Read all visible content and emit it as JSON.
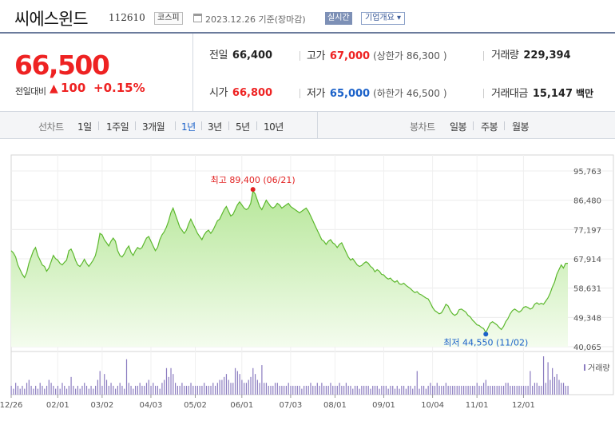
{
  "header": {
    "stock_name": "씨에스윈드",
    "stock_code": "112610",
    "market": "코스피",
    "date_text": "2023.12.26 기준(장마감)",
    "realtime_label": "실시간",
    "overview_label": "기업개요 ▾"
  },
  "quote": {
    "current_price": "66,500",
    "change_label": "전일대비",
    "change_arrow": "▲",
    "change_value": "100",
    "change_pct": "+0.15%",
    "prev_close": {
      "label": "전일",
      "value": "66,400"
    },
    "open": {
      "label": "시가",
      "value": "66,800"
    },
    "high": {
      "label": "고가",
      "value": "67,000",
      "limit_label": "(상한가",
      "limit_value": "86,300",
      "limit_close": ")"
    },
    "low": {
      "label": "저가",
      "value": "65,000",
      "limit_label": "(하한가",
      "limit_value": "46,500",
      "limit_close": ")"
    },
    "volume": {
      "label": "거래량",
      "value": "229,394"
    },
    "amount": {
      "label": "거래대금",
      "value": "15,147",
      "unit": "백만"
    }
  },
  "period_bar": {
    "line_label": "선차트",
    "periods": [
      "1일",
      "1주일",
      "3개월",
      "1년",
      "3년",
      "5년",
      "10년"
    ],
    "active_period": "1년",
    "candle_label": "봉차트",
    "candles": [
      "일봉",
      "주봉",
      "월봉"
    ]
  },
  "chart_data": {
    "type": "area",
    "y_ticks": [
      "95,763",
      "86,480",
      "77,197",
      "67,914",
      "58,631",
      "49,348",
      "40,065"
    ],
    "ylim": [
      40065,
      95763
    ],
    "x_ticks": [
      "12/26",
      "02/01",
      "03/02",
      "04/03",
      "05/02",
      "06/01",
      "07/03",
      "08/01",
      "09/01",
      "10/04",
      "11/01",
      "12/01"
    ],
    "max_annotation": "최고 89,400 (06/21)",
    "min_annotation": "최저 44,550 (11/02)",
    "volume_label": "거래량",
    "line_color": "#5cb82d",
    "fill_color": "#c8eeb0",
    "up_color": "#e22222",
    "down_color": "#1a61c9",
    "prices": [
      70500,
      69800,
      68500,
      66000,
      64500,
      63000,
      62000,
      63500,
      66500,
      68500,
      70500,
      71500,
      69000,
      67500,
      66000,
      65500,
      64000,
      65000,
      67000,
      69000,
      68000,
      67500,
      66500,
      66000,
      66800,
      67500,
      70500,
      71000,
      69500,
      67500,
      66000,
      65500,
      66500,
      67800,
      66500,
      65500,
      66500,
      67500,
      69000,
      72000,
      76000,
      75500,
      74000,
      73000,
      72000,
      73500,
      74500,
      73500,
      70500,
      69000,
      68500,
      69500,
      71000,
      72000,
      70000,
      69000,
      70500,
      71500,
      71000,
      71500,
      73000,
      74500,
      75000,
      73500,
      72000,
      70500,
      71500,
      74000,
      75500,
      76500,
      78000,
      80000,
      82500,
      84000,
      82000,
      80000,
      78000,
      77000,
      76000,
      77000,
      79000,
      80500,
      79000,
      77500,
      76000,
      75000,
      74000,
      75500,
      76500,
      77000,
      76000,
      77000,
      78500,
      80000,
      80500,
      82000,
      83500,
      84500,
      83000,
      81500,
      82000,
      83500,
      85000,
      86000,
      85000,
      84000,
      83500,
      84000,
      85500,
      89400,
      88500,
      86500,
      84500,
      83500,
      85000,
      86500,
      85500,
      84500,
      84000,
      84500,
      85500,
      85000,
      84000,
      84500,
      85000,
      85500,
      84500,
      84000,
      83500,
      83000,
      82500,
      83000,
      83500,
      84000,
      83000,
      81500,
      80000,
      78500,
      77000,
      75500,
      74000,
      73500,
      72500,
      73500,
      74000,
      73000,
      72500,
      71500,
      72500,
      73000,
      71500,
      70000,
      68500,
      67500,
      68000,
      67000,
      66000,
      65500,
      65800,
      66500,
      67000,
      66500,
      65500,
      65000,
      63800,
      64500,
      64000,
      63000,
      62800,
      62000,
      61500,
      61800,
      61000,
      60500,
      61000,
      60000,
      59800,
      60200,
      59500,
      59000,
      58500,
      57800,
      57200,
      57500,
      56800,
      56500,
      56000,
      55500,
      55200,
      54000,
      52500,
      51500,
      51000,
      50500,
      50800,
      52000,
      53500,
      53000,
      51500,
      50500,
      50000,
      50500,
      51800,
      52000,
      51500,
      51000,
      50000,
      49500,
      48500,
      47800,
      47000,
      46800,
      46200,
      45800,
      44550,
      46000,
      47500,
      48000,
      47500,
      47000,
      46200,
      45500,
      46500,
      48000,
      49000,
      50500,
      51500,
      52000,
      51500,
      51000,
      51500,
      52500,
      52800,
      52500,
      52000,
      52300,
      53500,
      54000,
      53500,
      53800,
      53500,
      54500,
      55500,
      57000,
      59000,
      60500,
      63000,
      64500,
      66000,
      65000,
      66500,
      66500
    ],
    "volumes": [
      3,
      2,
      4,
      3,
      2,
      3,
      2,
      4,
      5,
      3,
      2,
      3,
      2,
      4,
      3,
      2,
      3,
      5,
      4,
      3,
      2,
      3,
      2,
      4,
      3,
      2,
      3,
      6,
      3,
      2,
      3,
      2,
      3,
      4,
      3,
      2,
      3,
      2,
      3,
      5,
      4,
      3,
      7,
      5,
      3,
      4,
      3,
      2,
      3,
      4,
      3,
      2,
      3,
      4,
      3,
      2,
      3,
      3,
      4,
      3,
      3,
      4,
      5,
      3,
      4,
      3,
      3,
      2,
      4,
      5,
      4,
      6,
      9,
      7,
      4,
      3,
      3,
      4,
      3,
      3,
      3,
      4,
      3,
      3,
      3,
      3,
      3,
      4,
      3,
      3,
      3,
      4,
      3,
      4,
      5,
      5,
      6,
      7,
      5,
      4,
      4,
      6,
      8,
      7,
      5,
      4,
      4,
      5,
      6,
      9,
      7,
      5,
      4,
      3,
      4,
      4,
      3,
      3,
      3,
      4,
      4,
      3,
      3,
      3,
      3,
      4,
      3,
      3,
      3,
      3,
      3,
      2,
      3,
      3,
      3,
      4,
      3,
      3,
      4,
      3,
      4,
      3,
      3,
      3,
      4,
      3,
      3,
      3,
      4,
      3,
      3,
      4,
      3,
      3,
      2,
      3,
      3,
      2,
      3,
      3,
      3,
      3,
      2,
      3,
      3,
      3,
      2,
      3,
      3,
      3,
      2,
      3,
      3,
      2,
      3,
      2,
      3,
      3,
      2,
      3,
      3,
      2,
      3,
      3,
      2,
      3,
      3,
      2,
      3,
      4,
      3,
      3,
      4,
      3,
      3,
      3,
      4,
      3,
      3,
      3,
      3,
      3,
      3,
      3,
      3,
      3,
      3,
      3,
      3,
      3,
      4,
      3,
      3,
      4,
      5,
      3,
      3,
      3,
      3,
      3,
      3,
      3,
      3,
      4,
      4,
      3,
      3,
      3,
      3,
      3,
      3,
      3,
      3,
      3,
      3,
      3,
      4,
      4,
      3,
      3,
      3,
      4,
      4,
      5,
      8,
      6,
      7,
      5,
      4,
      4,
      3,
      3
    ],
    "spikes": [
      [
        52,
        12
      ],
      [
        40,
        8
      ],
      [
        70,
        9
      ],
      [
        101,
        9
      ],
      [
        113,
        10
      ],
      [
        183,
        8
      ],
      [
        234,
        8
      ],
      [
        240,
        13
      ],
      [
        242,
        11
      ],
      [
        244,
        9
      ]
    ]
  }
}
